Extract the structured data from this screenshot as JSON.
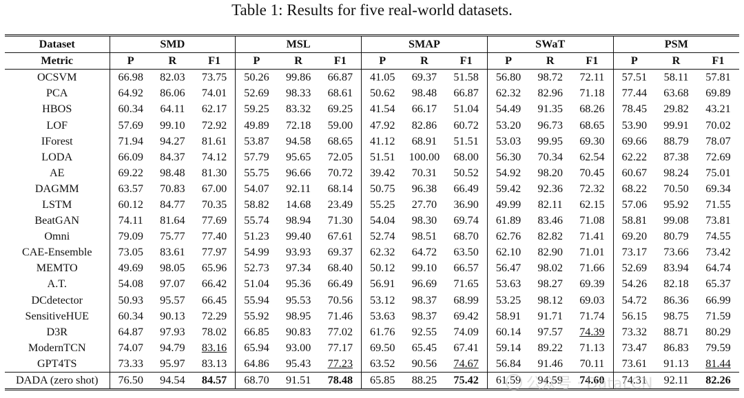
{
  "caption": "Table 1: Results for five real-world datasets.",
  "header": {
    "dataset_label": "Dataset",
    "metric_label": "Metric",
    "datasets": [
      "SMD",
      "MSL",
      "SMAP",
      "SWaT",
      "PSM"
    ],
    "metrics": [
      "P",
      "R",
      "F1"
    ]
  },
  "rows": [
    {
      "name": "OCSVM",
      "values": [
        "66.98",
        "82.03",
        "73.75",
        "50.26",
        "99.86",
        "66.87",
        "41.05",
        "69.37",
        "51.58",
        "56.80",
        "98.72",
        "72.11",
        "57.51",
        "58.11",
        "57.81"
      ]
    },
    {
      "name": "PCA",
      "values": [
        "64.92",
        "86.06",
        "74.01",
        "52.69",
        "98.33",
        "68.61",
        "50.62",
        "98.48",
        "66.87",
        "62.32",
        "82.96",
        "71.18",
        "77.44",
        "63.68",
        "69.89"
      ]
    },
    {
      "name": "HBOS",
      "values": [
        "60.34",
        "64.11",
        "62.17",
        "59.25",
        "83.32",
        "69.25",
        "41.54",
        "66.17",
        "51.04",
        "54.49",
        "91.35",
        "68.26",
        "78.45",
        "29.82",
        "43.21"
      ]
    },
    {
      "name": "LOF",
      "values": [
        "57.69",
        "99.10",
        "72.92",
        "49.89",
        "72.18",
        "59.00",
        "47.92",
        "82.86",
        "60.72",
        "53.20",
        "96.73",
        "68.65",
        "53.90",
        "99.91",
        "70.02"
      ]
    },
    {
      "name": "IForest",
      "values": [
        "71.94",
        "94.27",
        "81.61",
        "53.87",
        "94.58",
        "68.65",
        "41.12",
        "68.91",
        "51.51",
        "53.03",
        "99.95",
        "69.30",
        "69.66",
        "88.79",
        "78.07"
      ]
    },
    {
      "name": "LODA",
      "values": [
        "66.09",
        "84.37",
        "74.12",
        "57.79",
        "95.65",
        "72.05",
        "51.51",
        "100.00",
        "68.00",
        "56.30",
        "70.34",
        "62.54",
        "62.22",
        "87.38",
        "72.69"
      ]
    },
    {
      "name": "AE",
      "values": [
        "69.22",
        "98.48",
        "81.30",
        "55.75",
        "96.66",
        "70.72",
        "39.42",
        "70.31",
        "50.52",
        "54.92",
        "98.20",
        "70.45",
        "60.67",
        "98.24",
        "75.01"
      ]
    },
    {
      "name": "DAGMM",
      "values": [
        "63.57",
        "70.83",
        "67.00",
        "54.07",
        "92.11",
        "68.14",
        "50.75",
        "96.38",
        "66.49",
        "59.42",
        "92.36",
        "72.32",
        "68.22",
        "70.50",
        "69.34"
      ]
    },
    {
      "name": "LSTM",
      "values": [
        "60.12",
        "84.77",
        "70.35",
        "58.82",
        "14.68",
        "23.49",
        "55.25",
        "27.70",
        "36.90",
        "49.99",
        "82.11",
        "62.15",
        "57.06",
        "95.92",
        "71.55"
      ]
    },
    {
      "name": "BeatGAN",
      "values": [
        "74.11",
        "81.64",
        "77.69",
        "55.74",
        "98.94",
        "71.30",
        "54.04",
        "98.30",
        "69.74",
        "61.89",
        "83.46",
        "71.08",
        "58.81",
        "99.08",
        "73.81"
      ]
    },
    {
      "name": "Omni",
      "values": [
        "79.09",
        "75.77",
        "77.40",
        "51.23",
        "99.40",
        "67.61",
        "52.74",
        "98.51",
        "68.70",
        "62.76",
        "82.82",
        "71.41",
        "69.20",
        "80.79",
        "74.55"
      ]
    },
    {
      "name": "CAE-Ensemble",
      "values": [
        "73.05",
        "83.61",
        "77.97",
        "54.99",
        "93.93",
        "69.37",
        "62.32",
        "64.72",
        "63.50",
        "62.10",
        "82.90",
        "71.01",
        "73.17",
        "73.66",
        "73.42"
      ]
    },
    {
      "name": "MEMTO",
      "values": [
        "49.69",
        "98.05",
        "65.96",
        "52.73",
        "97.34",
        "68.40",
        "50.12",
        "99.10",
        "66.57",
        "56.47",
        "98.02",
        "71.66",
        "52.69",
        "83.94",
        "64.74"
      ]
    },
    {
      "name": "A.T.",
      "values": [
        "54.08",
        "97.07",
        "66.42",
        "51.04",
        "95.36",
        "66.49",
        "56.91",
        "96.69",
        "71.65",
        "53.63",
        "98.27",
        "69.39",
        "54.26",
        "82.18",
        "65.37"
      ]
    },
    {
      "name": "DCdetector",
      "values": [
        "50.93",
        "95.57",
        "66.45",
        "55.94",
        "95.53",
        "70.56",
        "53.12",
        "98.37",
        "68.99",
        "53.25",
        "98.12",
        "69.03",
        "54.72",
        "86.36",
        "66.99"
      ]
    },
    {
      "name": "SensitiveHUE",
      "values": [
        "60.34",
        "90.13",
        "72.29",
        "55.92",
        "98.95",
        "71.46",
        "53.63",
        "98.37",
        "69.42",
        "58.91",
        "91.71",
        "71.74",
        "56.15",
        "98.75",
        "71.59"
      ]
    },
    {
      "name": "D3R",
      "values": [
        "64.87",
        "97.93",
        "78.02",
        "66.85",
        "90.83",
        "77.02",
        "61.76",
        "92.55",
        "74.09",
        "60.14",
        "97.57",
        "74.39",
        "73.32",
        "88.71",
        "80.29"
      ],
      "underline": [
        11
      ]
    },
    {
      "name": "ModernTCN",
      "values": [
        "74.07",
        "94.79",
        "83.16",
        "65.94",
        "93.00",
        "77.17",
        "69.50",
        "65.45",
        "67.41",
        "59.14",
        "89.22",
        "71.13",
        "73.47",
        "86.83",
        "79.59"
      ],
      "underline": [
        2
      ]
    },
    {
      "name": "GPT4TS",
      "values": [
        "73.33",
        "95.97",
        "83.13",
        "64.86",
        "95.43",
        "77.23",
        "63.52",
        "90.56",
        "74.67",
        "56.84",
        "91.46",
        "70.11",
        "73.61",
        "91.13",
        "81.44"
      ],
      "underline": [
        5,
        8,
        14
      ]
    },
    {
      "name": "DADA (zero shot)",
      "values": [
        "76.50",
        "94.54",
        "84.57",
        "68.70",
        "91.51",
        "78.48",
        "65.85",
        "88.25",
        "75.42",
        "61.59",
        "94.59",
        "74.60",
        "74.31",
        "92.11",
        "82.26"
      ],
      "bold": [
        2,
        5,
        8,
        11,
        14
      ],
      "separator": true
    }
  ],
  "watermark": {
    "text": "公众号 · DataLCN"
  }
}
